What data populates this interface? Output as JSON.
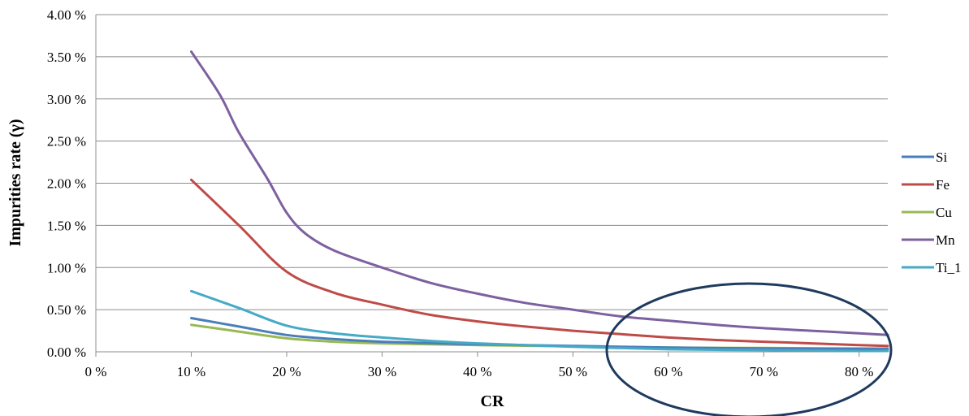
{
  "chart_data": {
    "type": "line",
    "title": "",
    "xlabel": "CR",
    "ylabel": "Impurities rate (γ)",
    "xlim": [
      0,
      83
    ],
    "ylim": [
      0,
      4.0
    ],
    "x_ticks": [
      "0 %",
      "10 %",
      "20 %",
      "30 %",
      "40 %",
      "50 %",
      "60 %",
      "70 %",
      "80 %"
    ],
    "y_ticks": [
      "0.00 %",
      "0.50 %",
      "1.00 %",
      "1.50 %",
      "2.00 %",
      "2.50 %",
      "3.00 %",
      "3.50 %",
      "4.00 %"
    ],
    "grid": "horizontal",
    "legend_position": "right",
    "series": [
      {
        "name": "Si",
        "color": "#4a7ebb",
        "points": [
          [
            10,
            0.4
          ],
          [
            15,
            0.3
          ],
          [
            20,
            0.2
          ],
          [
            25,
            0.15
          ],
          [
            30,
            0.12
          ],
          [
            40,
            0.09
          ],
          [
            50,
            0.07
          ],
          [
            60,
            0.05
          ],
          [
            70,
            0.04
          ],
          [
            80,
            0.035
          ],
          [
            83,
            0.033
          ]
        ]
      },
      {
        "name": "Fe",
        "color": "#be4b48",
        "points": [
          [
            10,
            2.04
          ],
          [
            15,
            1.5
          ],
          [
            20,
            0.95
          ],
          [
            25,
            0.7
          ],
          [
            30,
            0.56
          ],
          [
            35,
            0.44
          ],
          [
            40,
            0.36
          ],
          [
            45,
            0.3
          ],
          [
            50,
            0.25
          ],
          [
            55,
            0.21
          ],
          [
            60,
            0.17
          ],
          [
            65,
            0.14
          ],
          [
            70,
            0.12
          ],
          [
            75,
            0.1
          ],
          [
            80,
            0.08
          ],
          [
            83,
            0.07
          ]
        ]
      },
      {
        "name": "Cu",
        "color": "#98b954",
        "points": [
          [
            10,
            0.32
          ],
          [
            15,
            0.24
          ],
          [
            20,
            0.16
          ],
          [
            25,
            0.12
          ],
          [
            30,
            0.1
          ],
          [
            40,
            0.08
          ],
          [
            50,
            0.065
          ],
          [
            60,
            0.05
          ],
          [
            70,
            0.045
          ],
          [
            80,
            0.04
          ],
          [
            83,
            0.04
          ]
        ]
      },
      {
        "name": "Mn",
        "color": "#7d60a0",
        "points": [
          [
            10,
            3.56
          ],
          [
            13,
            3.05
          ],
          [
            15,
            2.6
          ],
          [
            18,
            2.05
          ],
          [
            20,
            1.65
          ],
          [
            22,
            1.4
          ],
          [
            25,
            1.2
          ],
          [
            30,
            1.0
          ],
          [
            35,
            0.82
          ],
          [
            40,
            0.69
          ],
          [
            45,
            0.58
          ],
          [
            50,
            0.5
          ],
          [
            55,
            0.42
          ],
          [
            60,
            0.37
          ],
          [
            65,
            0.32
          ],
          [
            70,
            0.28
          ],
          [
            75,
            0.25
          ],
          [
            80,
            0.22
          ],
          [
            83,
            0.2
          ]
        ]
      },
      {
        "name": "Ti_1",
        "color": "#46aac5",
        "points": [
          [
            10,
            0.72
          ],
          [
            15,
            0.52
          ],
          [
            20,
            0.31
          ],
          [
            25,
            0.22
          ],
          [
            30,
            0.17
          ],
          [
            35,
            0.13
          ],
          [
            40,
            0.1
          ],
          [
            50,
            0.06
          ],
          [
            60,
            0.03
          ],
          [
            70,
            0.02
          ],
          [
            80,
            0.01
          ],
          [
            83,
            0.01
          ]
        ]
      }
    ],
    "annotation": {
      "shape": "ellipse",
      "color": "#1f3a5f"
    }
  }
}
